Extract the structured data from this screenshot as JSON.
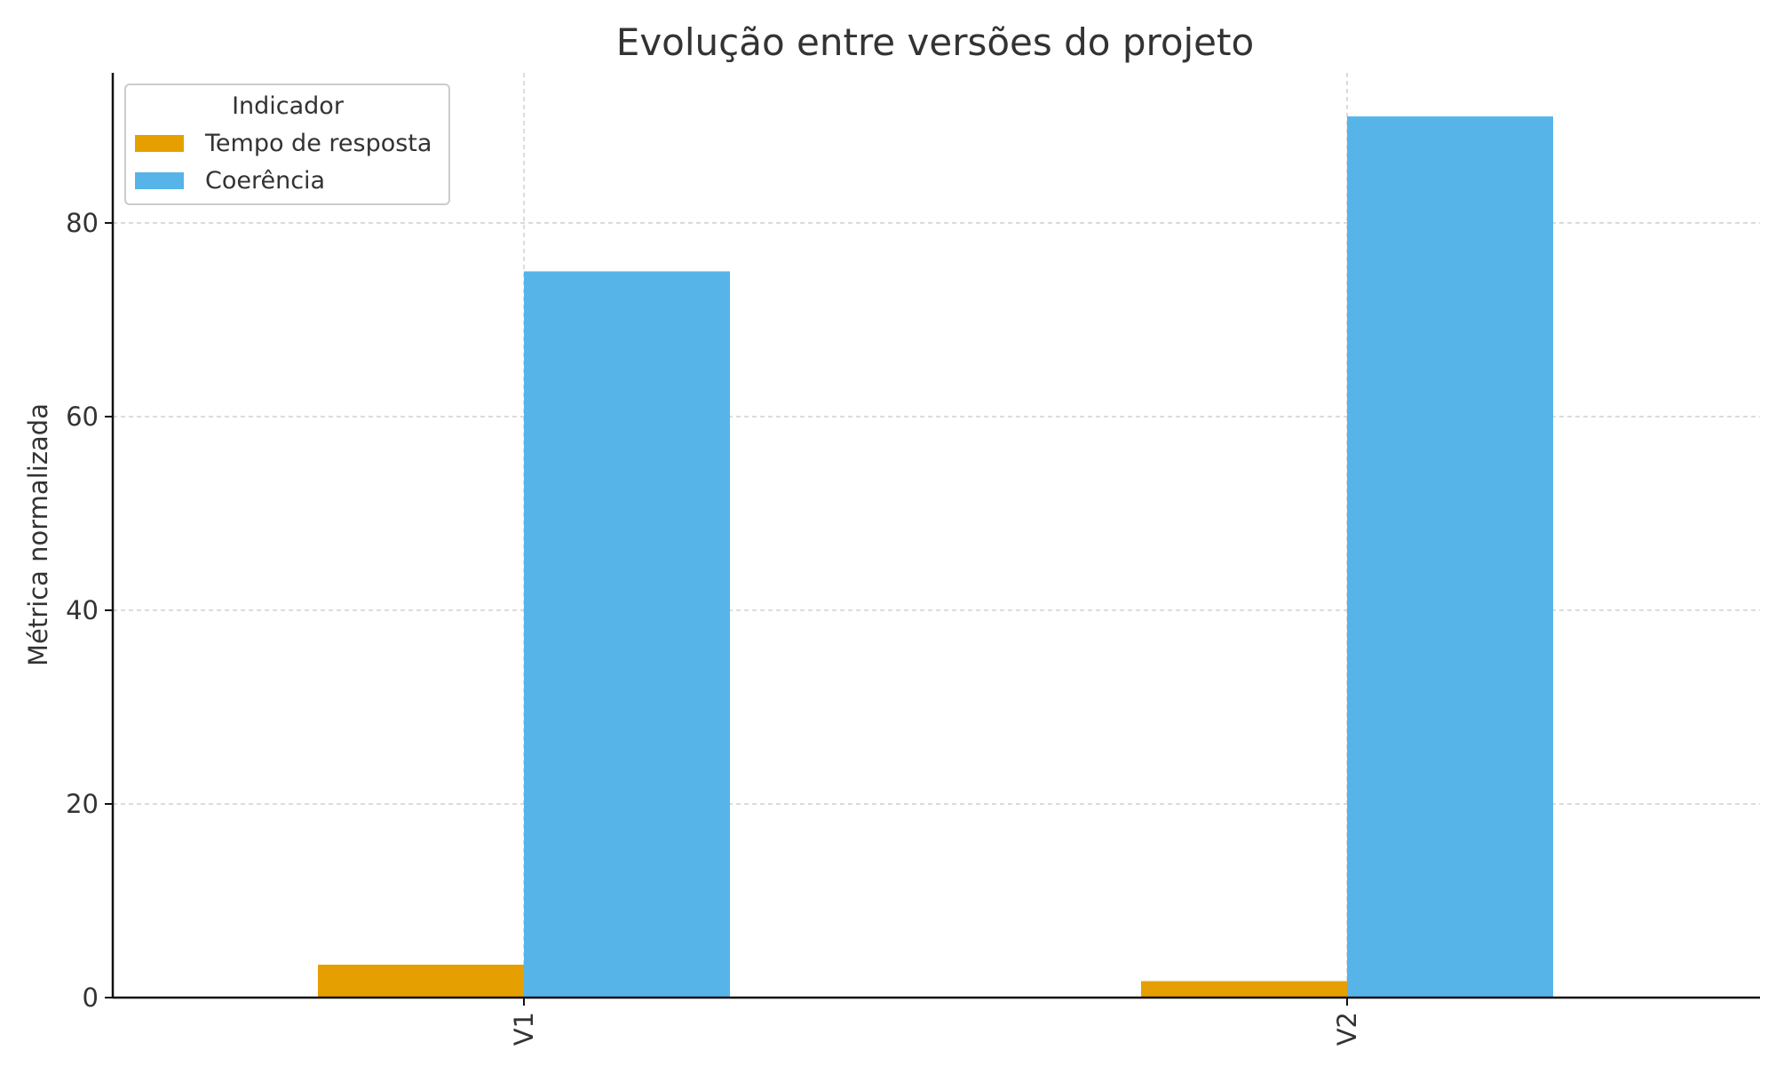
{
  "chart_data": {
    "type": "bar",
    "title": "Evolução entre versões do projeto",
    "xlabel": "",
    "ylabel": "Métrica normalizada",
    "categories": [
      "V1",
      "V2"
    ],
    "series": [
      {
        "name": "Tempo de resposta",
        "values": [
          3.4,
          1.7
        ],
        "color": "#E69F00"
      },
      {
        "name": "Coerência",
        "values": [
          75,
          91
        ],
        "color": "#56B4E9"
      }
    ],
    "ylim": [
      0,
      95.5
    ],
    "yticks": [
      0,
      20,
      40,
      60,
      80
    ],
    "grid": true,
    "legend": {
      "title": "Indicador",
      "placement": "top-left"
    }
  }
}
